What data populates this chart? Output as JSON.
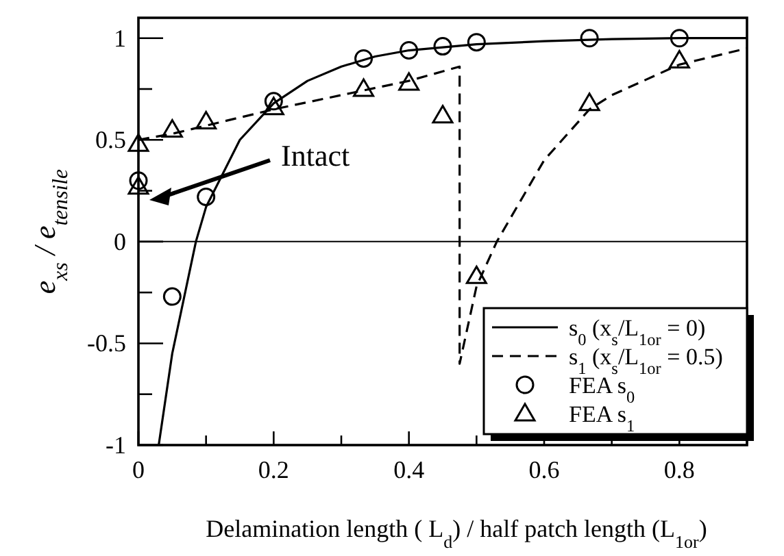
{
  "chart_data": {
    "type": "line",
    "xlabel": "Delamination length ( L$_{d}$) / half patch length (L$_{1or}$)",
    "ylabel": "e$_{xs}$ / e$_{tensile}$",
    "xlim": [
      0,
      0.9
    ],
    "ylim": [
      -1,
      1.1
    ],
    "xticks": [
      0,
      {
        "value": 0.1,
        "label": null
      },
      0.2,
      {
        "value": 0.3,
        "label": null
      },
      0.4,
      {
        "value": 0.5,
        "label": null
      },
      0.6,
      {
        "value": 0.7,
        "label": null
      },
      0.8,
      {
        "value": 0.9,
        "label": null
      }
    ],
    "yticks": [
      -1,
      {
        "value": -0.75,
        "label": null
      },
      -0.5,
      {
        "value": -0.25,
        "label": null
      },
      0,
      {
        "value": 0.25,
        "label": null
      },
      0.5,
      {
        "value": 0.75,
        "label": null
      },
      1
    ],
    "grid": false,
    "legend": "bottom right",
    "ref_lines": [
      {
        "axis": "y",
        "value": 0,
        "color": "#000000"
      }
    ],
    "annotations": [
      "Intact"
    ],
    "series": [
      {
        "name": "s$_{0}$ (x$_{s}$/L$_{1or}$ = 0)",
        "color": "#000000",
        "line_style": "solid",
        "marker": "none",
        "x": [
          0.03,
          0.05,
          0.085,
          0.1,
          0.15,
          0.2,
          0.25,
          0.3,
          0.35,
          0.4,
          0.5,
          0.6,
          0.7,
          0.8,
          0.9
        ],
        "values": [
          -1,
          -0.55,
          0,
          0.17,
          0.5,
          0.68,
          0.79,
          0.86,
          0.91,
          0.94,
          0.97,
          0.985,
          0.995,
          1,
          1
        ]
      },
      {
        "name": "s$_{1}$ (x$_{s}$/L$_{1or}$ = 0.5)",
        "color": "#000000",
        "line_style": "dashed",
        "marker": "none",
        "x": [
          0,
          0.05,
          0.1,
          0.2,
          0.3,
          0.4,
          0.475,
          0.475,
          0.5,
          0.53,
          0.6,
          0.667,
          0.7,
          0.8,
          0.9
        ],
        "values": [
          0.5,
          0.53,
          0.57,
          0.65,
          0.72,
          0.79,
          0.86,
          -0.6,
          -0.22,
          0,
          0.4,
          0.65,
          0.72,
          0.87,
          0.95
        ]
      },
      {
        "name": "FEA s$_{0}$",
        "type": "scatter",
        "color": "#000000",
        "marker": "circle",
        "x": [
          0,
          0.05,
          0.1,
          0.2,
          0.333,
          0.4,
          0.45,
          0.5,
          0.667,
          0.8
        ],
        "values": [
          0.3,
          -0.27,
          0.22,
          0.69,
          0.9,
          0.94,
          0.96,
          0.98,
          1,
          1
        ]
      },
      {
        "name": "FEA s$_{1}$",
        "type": "scatter",
        "color": "#000000",
        "marker": "triangle",
        "x": [
          0,
          0,
          0.05,
          0.1,
          0.2,
          0.333,
          0.4,
          0.45,
          0.5,
          0.667,
          0.8
        ],
        "values": [
          0.48,
          0.27,
          0.55,
          0.59,
          0.66,
          0.75,
          0.78,
          0.62,
          -0.17,
          0.68,
          0.89
        ]
      }
    ]
  }
}
